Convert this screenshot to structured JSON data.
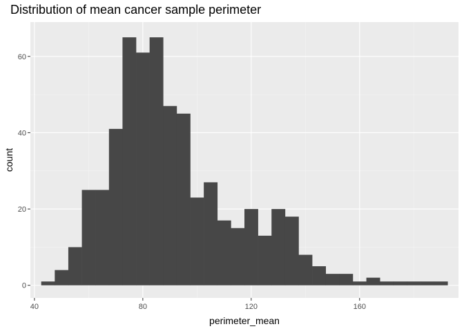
{
  "chart_data": {
    "type": "bar",
    "title": "Distribution of mean cancer sample perimeter",
    "xlabel": "perimeter_mean",
    "ylabel": "count",
    "xlim": [
      38.5,
      196.5
    ],
    "ylim": [
      -3.3,
      69
    ],
    "x_ticks": [
      40,
      80,
      120,
      160
    ],
    "x_ticks_minor": [
      60,
      100,
      140,
      180
    ],
    "y_ticks": [
      0,
      20,
      40,
      60
    ],
    "y_ticks_minor": [
      10,
      30,
      50
    ],
    "bin_width": 5,
    "bins": [
      {
        "x_start": 42.5,
        "x_end": 47.5,
        "count": 1
      },
      {
        "x_start": 47.5,
        "x_end": 52.5,
        "count": 4
      },
      {
        "x_start": 52.5,
        "x_end": 57.5,
        "count": 10
      },
      {
        "x_start": 57.5,
        "x_end": 62.5,
        "count": 25
      },
      {
        "x_start": 62.5,
        "x_end": 67.5,
        "count": 25
      },
      {
        "x_start": 67.5,
        "x_end": 72.5,
        "count": 41
      },
      {
        "x_start": 72.5,
        "x_end": 77.5,
        "count": 65
      },
      {
        "x_start": 77.5,
        "x_end": 82.5,
        "count": 61
      },
      {
        "x_start": 82.5,
        "x_end": 87.5,
        "count": 65
      },
      {
        "x_start": 87.5,
        "x_end": 92.5,
        "count": 47
      },
      {
        "x_start": 92.5,
        "x_end": 97.5,
        "count": 45
      },
      {
        "x_start": 97.5,
        "x_end": 102.5,
        "count": 23
      },
      {
        "x_start": 102.5,
        "x_end": 107.5,
        "count": 27
      },
      {
        "x_start": 107.5,
        "x_end": 112.5,
        "count": 17
      },
      {
        "x_start": 112.5,
        "x_end": 117.5,
        "count": 15
      },
      {
        "x_start": 117.5,
        "x_end": 122.5,
        "count": 20
      },
      {
        "x_start": 122.5,
        "x_end": 127.5,
        "count": 13
      },
      {
        "x_start": 127.5,
        "x_end": 132.5,
        "count": 20
      },
      {
        "x_start": 132.5,
        "x_end": 137.5,
        "count": 18
      },
      {
        "x_start": 137.5,
        "x_end": 142.5,
        "count": 8
      },
      {
        "x_start": 142.5,
        "x_end": 147.5,
        "count": 5
      },
      {
        "x_start": 147.5,
        "x_end": 152.5,
        "count": 3
      },
      {
        "x_start": 152.5,
        "x_end": 157.5,
        "count": 3
      },
      {
        "x_start": 157.5,
        "x_end": 162.5,
        "count": 1
      },
      {
        "x_start": 162.5,
        "x_end": 167.5,
        "count": 2
      },
      {
        "x_start": 167.5,
        "x_end": 172.5,
        "count": 1
      },
      {
        "x_start": 172.5,
        "x_end": 177.5,
        "count": 1
      },
      {
        "x_start": 177.5,
        "x_end": 182.5,
        "count": 1
      },
      {
        "x_start": 182.5,
        "x_end": 187.5,
        "count": 1
      },
      {
        "x_start": 187.5,
        "x_end": 192.5,
        "count": 1
      }
    ],
    "grid": true,
    "legend": "none"
  },
  "colors": {
    "panel_background": "#ebebeb",
    "grid_major": "#ffffff",
    "grid_minor": "#f5f5f5",
    "bar_fill": "#474747",
    "tick_text": "#4d4d4d",
    "tick_mark": "#333333"
  }
}
